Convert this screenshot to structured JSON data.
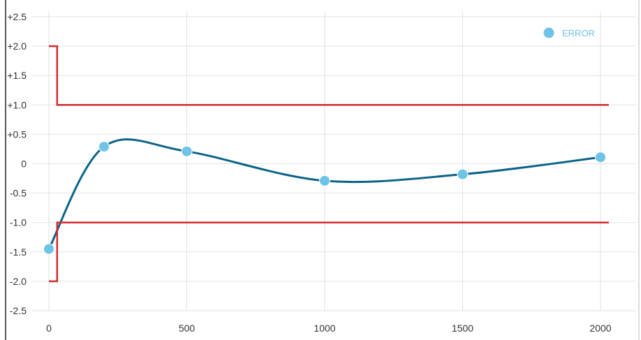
{
  "chart_data": {
    "type": "line",
    "title": "",
    "xlabel": "",
    "ylabel": "",
    "xlim": [
      0,
      2000
    ],
    "ylim": [
      -2.5,
      2.5
    ],
    "grid": true,
    "x_ticks": [
      0,
      500,
      1000,
      1500,
      2000
    ],
    "x_tick_labels": [
      "0",
      "500",
      "1000",
      "1500",
      "2000"
    ],
    "y_ticks": [
      2.5,
      2.0,
      1.5,
      1.0,
      0.5,
      0,
      -0.5,
      -1.0,
      -1.5,
      -2.0,
      -2.5
    ],
    "y_tick_labels": [
      "+2.5",
      "+2.0",
      "+1.5",
      "+1.0",
      "+0.5",
      "0",
      "-0.5",
      "-1.0",
      "-1.5",
      "-2.0",
      "-2.5"
    ],
    "legend": {
      "position": "top-right",
      "entries": [
        "ERROR"
      ]
    },
    "series": [
      {
        "name": "ERROR",
        "kind": "smooth-line-with-markers",
        "color": "#0c6487",
        "marker_color": "#6ec3e6",
        "x": [
          0,
          200,
          500,
          1000,
          1500,
          2000
        ],
        "y": [
          -1.45,
          0.29,
          0.21,
          -0.29,
          -0.18,
          0.11
        ]
      },
      {
        "kind": "step-line",
        "color": "#d42a2a",
        "x": [
          0,
          30,
          30,
          2030
        ],
        "y": [
          2.0,
          2.0,
          1.0,
          1.0
        ]
      },
      {
        "kind": "step-line",
        "color": "#d42a2a",
        "x": [
          0,
          30,
          30,
          2030
        ],
        "y": [
          -2.0,
          -2.0,
          -1.0,
          -1.0
        ]
      }
    ]
  }
}
